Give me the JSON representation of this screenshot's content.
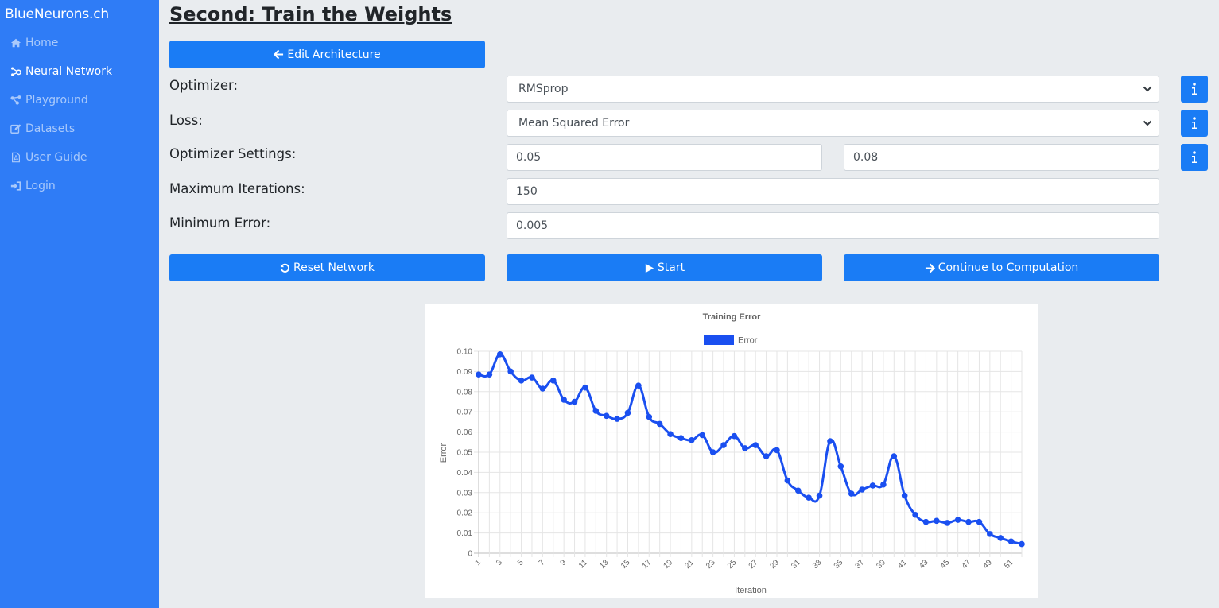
{
  "sidebar": {
    "brand": "BlueNeurons.ch",
    "items": [
      {
        "label": "Home",
        "icon": "home-icon"
      },
      {
        "label": "Neural Network",
        "icon": "network-icon"
      },
      {
        "label": "Playground",
        "icon": "diagram-icon"
      },
      {
        "label": "Datasets",
        "icon": "edit-icon"
      },
      {
        "label": "User Guide",
        "icon": "pdf-file-icon"
      },
      {
        "label": "Login",
        "icon": "sign-in-icon"
      }
    ],
    "active_item": "Neural Network"
  },
  "main": {
    "title": "Second: Train the Weights",
    "edit_button": "Edit Architecture",
    "optimizer": {
      "label": "Optimizer:",
      "value": "RMSprop"
    },
    "loss": {
      "label": "Loss:",
      "value": "Mean Squared Error"
    },
    "optimizer_settings": {
      "label": "Optimizer Settings:",
      "value1": "0.05",
      "value2": "0.08"
    },
    "max_iterations": {
      "label": "Maximum Iterations:",
      "value": "150"
    },
    "min_error": {
      "label": "Minimum Error:",
      "value": "0.005"
    },
    "reset_button": "Reset Network",
    "start_button": "Start",
    "continue_button": "Continue to Computation"
  },
  "colors": {
    "sidebar": "#2f7cf6",
    "button": "#1a7cf5",
    "series": "#1a4ff0",
    "background": "#e9ecef"
  },
  "chart_data": {
    "type": "line",
    "title": "Training Error",
    "xlabel": "Iteration",
    "ylabel": "Error",
    "ylim": [
      0,
      0.1
    ],
    "y_ticks": [
      "0",
      "0.01",
      "0.02",
      "0.03",
      "0.04",
      "0.05",
      "0.06",
      "0.07",
      "0.08",
      "0.09",
      "0.10"
    ],
    "x_ticks": [
      "1",
      "3",
      "5",
      "7",
      "9",
      "11",
      "13",
      "15",
      "17",
      "19",
      "21",
      "23",
      "25",
      "27",
      "29",
      "31",
      "33",
      "35",
      "37",
      "39",
      "41",
      "43",
      "45",
      "47",
      "49",
      "51"
    ],
    "grid": true,
    "legend_position": "top",
    "series": [
      {
        "name": "Error",
        "x": [
          1,
          2,
          3,
          4,
          5,
          6,
          7,
          8,
          9,
          10,
          11,
          12,
          13,
          14,
          15,
          16,
          17,
          18,
          19,
          20,
          21,
          22,
          23,
          24,
          25,
          26,
          27,
          28,
          29,
          30,
          31,
          32,
          33,
          34,
          35,
          36,
          37,
          38,
          39,
          40,
          41,
          42,
          43,
          44,
          45,
          46,
          47,
          48,
          49,
          50,
          51,
          52
        ],
        "values": [
          0.0885,
          0.0885,
          0.0985,
          0.09,
          0.0855,
          0.087,
          0.0815,
          0.0855,
          0.076,
          0.075,
          0.082,
          0.0705,
          0.068,
          0.0665,
          0.0695,
          0.083,
          0.0675,
          0.064,
          0.059,
          0.057,
          0.056,
          0.0585,
          0.05,
          0.0535,
          0.058,
          0.052,
          0.0535,
          0.048,
          0.051,
          0.036,
          0.031,
          0.0275,
          0.0285,
          0.0555,
          0.043,
          0.0295,
          0.0315,
          0.0335,
          0.034,
          0.048,
          0.0285,
          0.019,
          0.0155,
          0.016,
          0.015,
          0.0165,
          0.0155,
          0.0155,
          0.0095,
          0.0075,
          0.0058,
          0.0045
        ]
      }
    ]
  }
}
